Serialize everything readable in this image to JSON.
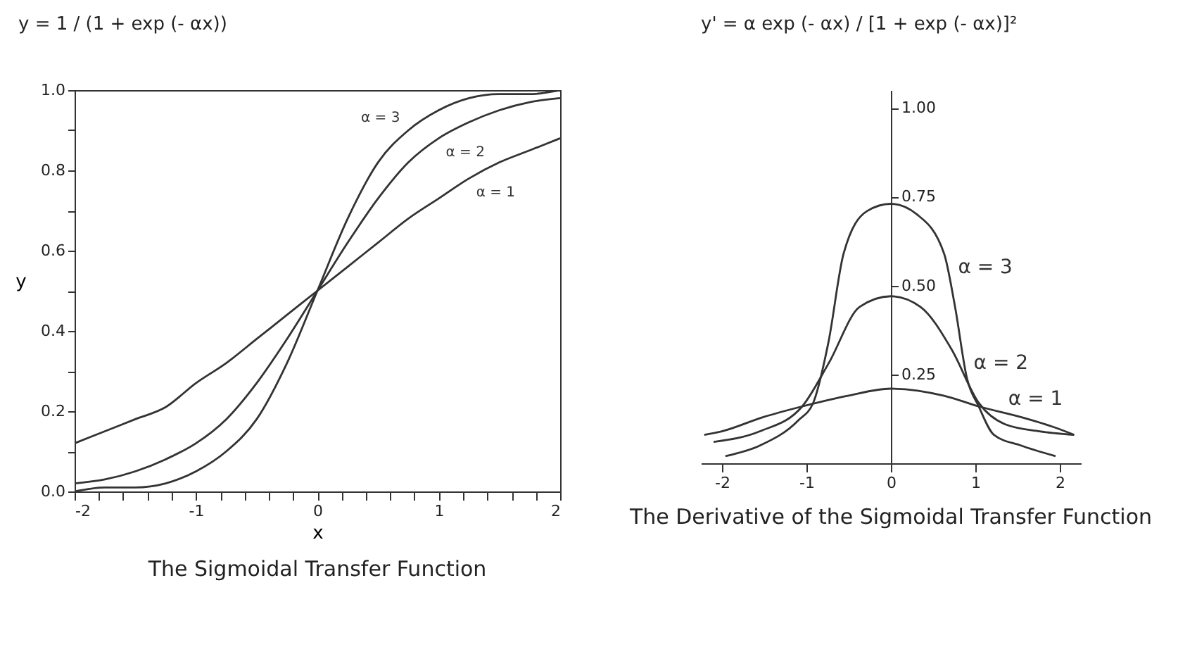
{
  "chart_data": [
    {
      "type": "line",
      "title": "The Sigmoidal Transfer Function",
      "xlabel": "x",
      "ylabel": "y",
      "annotations": [
        "y = 1 / (1 + exp (- αx))"
      ],
      "x": [
        -2,
        -1.75,
        -1.5,
        -1.25,
        -1,
        -0.75,
        -0.5,
        -0.25,
        0,
        0.25,
        0.5,
        0.75,
        1,
        1.25,
        1.5,
        1.75,
        2
      ],
      "series": [
        {
          "name": "α = 3",
          "color": "#333333",
          "values": [
            0,
            0.01,
            0.01,
            0.02,
            0.05,
            0.1,
            0.18,
            0.32,
            0.5,
            0.68,
            0.82,
            0.9,
            0.95,
            0.98,
            0.99,
            0.99,
            1.0
          ]
        },
        {
          "name": "α = 2",
          "color": "#333333",
          "values": [
            0.02,
            0.03,
            0.05,
            0.08,
            0.12,
            0.18,
            0.27,
            0.38,
            0.5,
            0.62,
            0.73,
            0.82,
            0.88,
            0.92,
            0.95,
            0.97,
            0.98
          ]
        },
        {
          "name": "α = 1",
          "color": "#333333",
          "values": [
            0.12,
            0.15,
            0.18,
            0.21,
            0.27,
            0.32,
            0.38,
            0.44,
            0.5,
            0.56,
            0.62,
            0.68,
            0.73,
            0.78,
            0.82,
            0.85,
            0.88
          ]
        }
      ],
      "xlim": [
        -2,
        2
      ],
      "xticks": [
        -2,
        {
          "value": -1.8,
          "label": null
        },
        {
          "value": -1.6,
          "label": null
        },
        {
          "value": -1.4,
          "label": null
        },
        {
          "value": -1.2,
          "label": null
        },
        -1,
        {
          "value": -0.8,
          "label": null
        },
        {
          "value": -0.6,
          "label": null
        },
        {
          "value": -0.4,
          "label": null
        },
        {
          "value": -0.2,
          "label": null
        },
        0,
        {
          "value": 0.2,
          "label": null
        },
        {
          "value": 0.4,
          "label": null
        },
        {
          "value": 0.6,
          "label": null
        },
        {
          "value": 0.8,
          "label": null
        },
        1,
        {
          "value": 1.2,
          "label": null
        },
        {
          "value": 1.4,
          "label": null
        },
        {
          "value": 1.6,
          "label": null
        },
        {
          "value": 1.8,
          "label": null
        },
        2
      ],
      "ylim": [
        0,
        1
      ],
      "yticks": [
        {
          "value": 0,
          "label": "0.0"
        },
        {
          "value": 0.1,
          "label": null
        },
        0.2,
        {
          "value": 0.3,
          "label": null
        },
        0.4,
        {
          "value": 0.5,
          "label": null
        },
        0.6,
        {
          "value": 0.7,
          "label": null
        },
        0.8,
        {
          "value": 0.9,
          "label": null
        },
        {
          "value": 1,
          "label": "1.0"
        }
      ],
      "grid": false
    },
    {
      "type": "line",
      "title": "The Derivative of the\nSigmoidal Transfer Function",
      "annotations": [
        "y' = α exp (- αx) / [1 + exp (- αx)]²"
      ],
      "series": [
        {
          "name": "α = 3",
          "color": "#333333",
          "x": [
            -1.96,
            -1.55,
            -1.1,
            -0.92,
            -0.74,
            -0.56,
            -0.28,
            0,
            0.31,
            0.63,
            0.76,
            0.9,
            1.04,
            1.22,
            1.54,
            1.95
          ],
          "values": [
            0.02,
            0.05,
            0.12,
            0.17,
            0.34,
            0.59,
            0.71,
            0.73,
            0.7,
            0.59,
            0.44,
            0.24,
            0.16,
            0.08,
            0.05,
            0.02
          ]
        },
        {
          "name": "α = 2",
          "color": "#333333",
          "x": [
            -2.1,
            -1.55,
            -1.05,
            -0.74,
            -0.37,
            0,
            0.35,
            0.72,
            1.04,
            1.35,
            1.76,
            2.17
          ],
          "values": [
            0.06,
            0.09,
            0.16,
            0.28,
            0.44,
            0.47,
            0.44,
            0.32,
            0.17,
            0.11,
            0.09,
            0.08
          ]
        },
        {
          "name": "α = 1",
          "color": "#333333",
          "x": [
            -2.21,
            -2,
            -1.51,
            -1.05,
            -0.51,
            0,
            0.63,
            1.04,
            1.54,
            1.95,
            2.17
          ],
          "values": [
            0.08,
            0.09,
            0.13,
            0.16,
            0.19,
            0.21,
            0.19,
            0.16,
            0.13,
            0.1,
            0.08
          ]
        }
      ],
      "xlim": [
        -2.25,
        2.25
      ],
      "xticks": [
        -2,
        -1,
        0,
        1,
        2
      ],
      "ylim": [
        0,
        1.05
      ],
      "yticks": [
        0.25,
        {
          "value": 0.5,
          "label": "0.50"
        },
        0.75,
        {
          "value": 1,
          "label": "1.00"
        }
      ],
      "grid": false
    }
  ]
}
